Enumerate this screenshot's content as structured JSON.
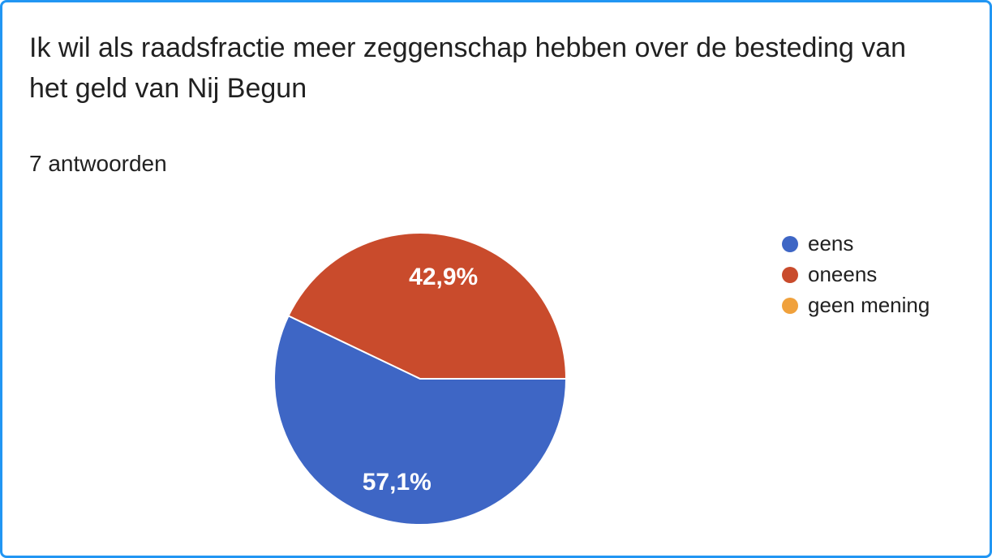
{
  "colors": {
    "card_border": "#2196F3",
    "card_background": "#ffffff",
    "text": "#212121",
    "slice_label_text": "#ffffff",
    "slice_separator": "#ffffff"
  },
  "header": {
    "title_lines": [
      "Ik wil als raadsfractie meer zeggenschap hebben over de besteding van",
      "het geld van Nij Begun"
    ],
    "answers_count": "7 antwoorden"
  },
  "chart_data": {
    "type": "pie",
    "title": "Ik wil als raadsfractie meer zeggenschap hebben over de besteding van het geld van Nij Begun",
    "subtitle": "7 antwoorden",
    "total_answers": 7,
    "categories": [
      "eens",
      "oneens",
      "geen mening"
    ],
    "values": [
      4,
      3,
      0
    ],
    "percentages": [
      57.1,
      42.9,
      0
    ],
    "percent_labels": [
      "57,1%",
      "42,9%",
      ""
    ],
    "colors": [
      "#3E66C5",
      "#C94B2C",
      "#F0A13C"
    ],
    "legend_position": "right",
    "start_angle_deg": 0,
    "direction": "clockwise",
    "label_radius_fraction": 0.72
  }
}
